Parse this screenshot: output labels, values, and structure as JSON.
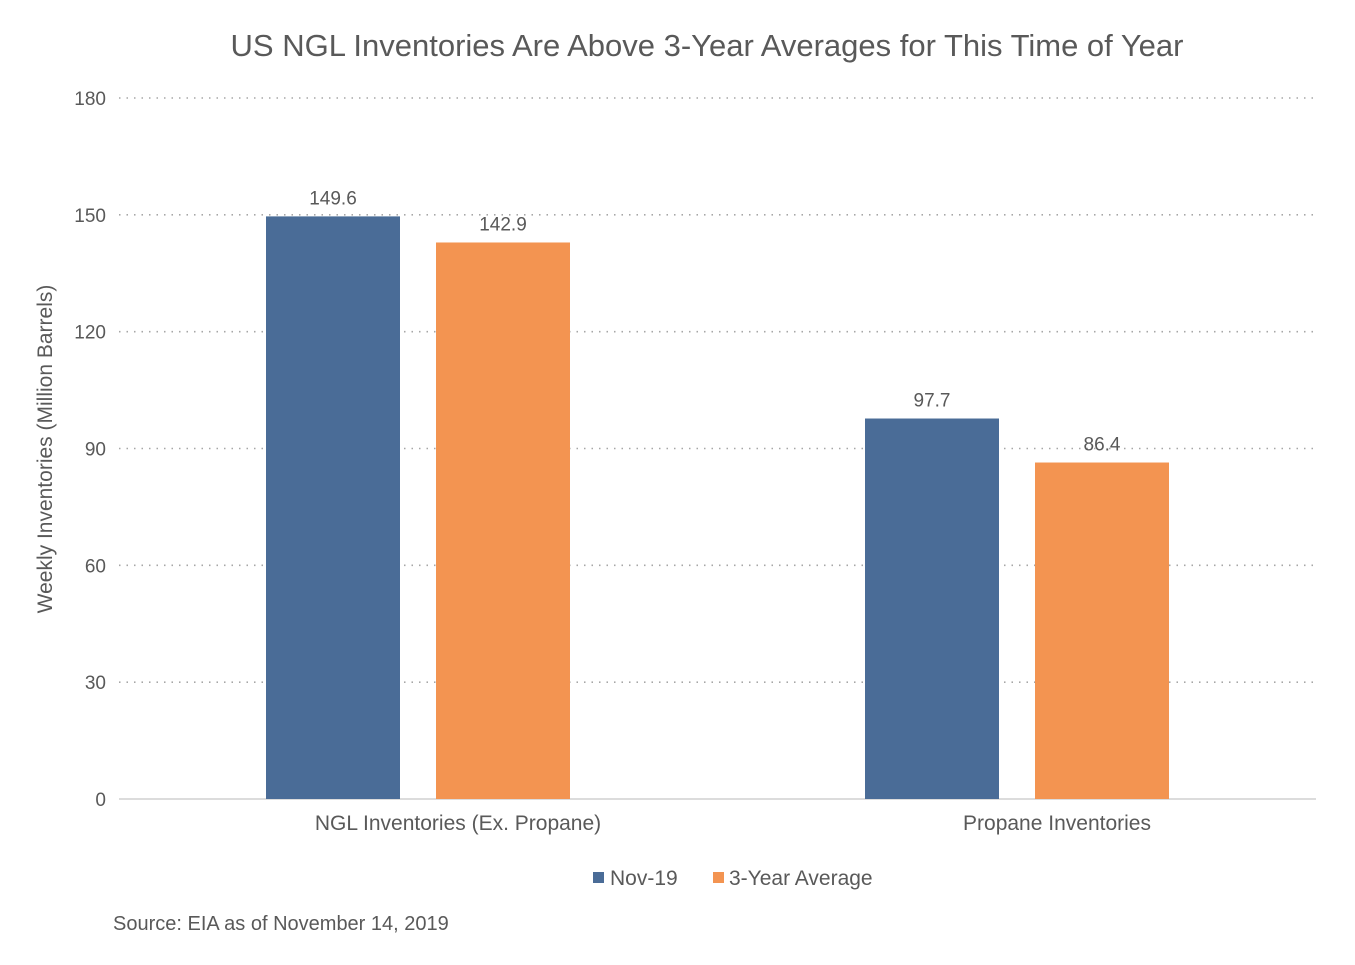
{
  "chart_data": {
    "type": "bar",
    "title": "US NGL Inventories Are Above 3-Year Averages for This Time of Year",
    "xlabel": "",
    "ylabel": "Weekly Inventories (Million Barrels)",
    "categories": [
      "NGL Inventories (Ex. Propane)",
      "Propane Inventories"
    ],
    "series": [
      {
        "name": "Nov-19",
        "values": [
          149.6,
          97.7
        ],
        "color": "#4a6c97"
      },
      {
        "name": "3-Year Average",
        "values": [
          142.9,
          86.4
        ],
        "color": "#f39451"
      }
    ],
    "ylim": [
      0,
      180
    ],
    "yticks": [
      "0",
      "30",
      "60",
      "90",
      "120",
      "150",
      "180"
    ],
    "data_labels": [
      [
        "149.6",
        "97.7"
      ],
      [
        "142.9",
        "86.4"
      ]
    ],
    "grid": true,
    "legend_position": "bottom",
    "source": "Source: EIA as of November 14, 2019"
  }
}
